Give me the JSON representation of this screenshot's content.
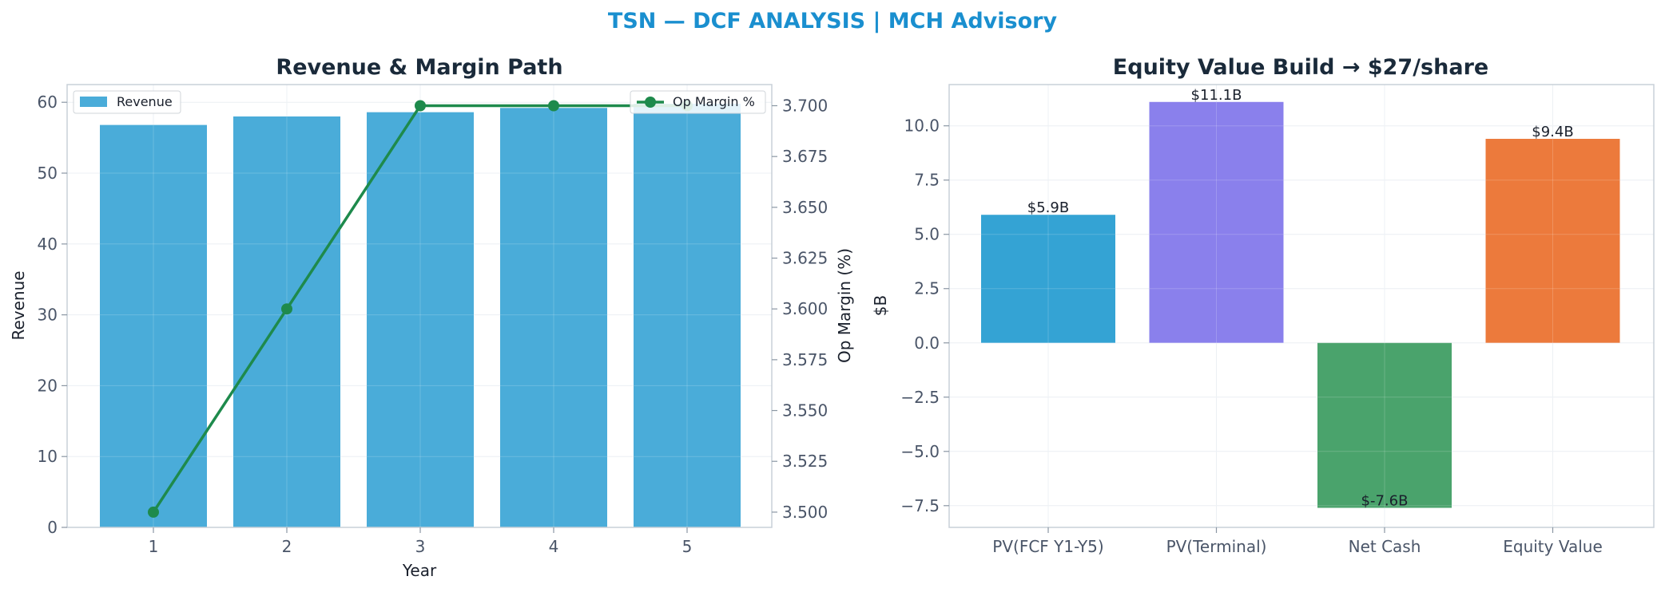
{
  "suptitle": "TSN — DCF ANALYSIS | MCH Advisory",
  "colors": {
    "suptitle": "#1a8fcf",
    "revenue_bar": "#4aacd9",
    "op_margin_line": "#1e8a4c",
    "grid": "#e8edf2",
    "spine": "#c8d0d8"
  },
  "chart_data": [
    {
      "type": "bar",
      "title": "Revenue & Margin Path",
      "xlabel": "Year",
      "ylabel": "Revenue",
      "y2label": "Op Margin (%)",
      "categories": [
        "1",
        "2",
        "3",
        "4",
        "5"
      ],
      "ylim": [
        0,
        62.5
      ],
      "y2lim": [
        3.4925,
        3.7104
      ],
      "yticks": [
        "0",
        "10",
        "20",
        "30",
        "40",
        "50",
        "60"
      ],
      "y2ticks": [
        "3.500",
        "3.525",
        "3.550",
        "3.575",
        "3.600",
        "3.625",
        "3.650",
        "3.675",
        "3.700"
      ],
      "grid": true,
      "series": [
        {
          "name": "Revenue",
          "type": "bar",
          "axis": "left",
          "values": [
            56.8,
            58.0,
            58.6,
            59.2,
            59.8
          ]
        },
        {
          "name": "Op Margin %",
          "type": "line",
          "axis": "right",
          "values": [
            3.5,
            3.6,
            3.7,
            3.7,
            3.7
          ]
        }
      ],
      "legend": [
        {
          "label": "Revenue",
          "placement": "upper-left"
        },
        {
          "label": "Op Margin %",
          "placement": "upper-right"
        }
      ]
    },
    {
      "type": "bar",
      "title": "Equity Value Build → $27/share",
      "xlabel": "",
      "ylabel": "$B",
      "categories": [
        "PV(FCF Y1-Y5)",
        "PV(Terminal)",
        "Net Cash",
        "Equity Value"
      ],
      "values": [
        5.9,
        11.1,
        -7.6,
        9.4
      ],
      "data_labels": [
        "$5.9B",
        "$11.1B",
        "$-7.6B",
        "$9.4B"
      ],
      "bar_colors": [
        "#34a3d4",
        "#8a80ec",
        "#4aa36c",
        "#ec7a3c"
      ],
      "ylim": [
        -8.5,
        11.9
      ],
      "yticks": [
        "−7.5",
        "−5.0",
        "−2.5",
        "0.0",
        "2.5",
        "5.0",
        "7.5",
        "10.0"
      ],
      "ytick_values": [
        -7.5,
        -5.0,
        -2.5,
        0.0,
        2.5,
        5.0,
        7.5,
        10.0
      ],
      "grid": true
    }
  ]
}
